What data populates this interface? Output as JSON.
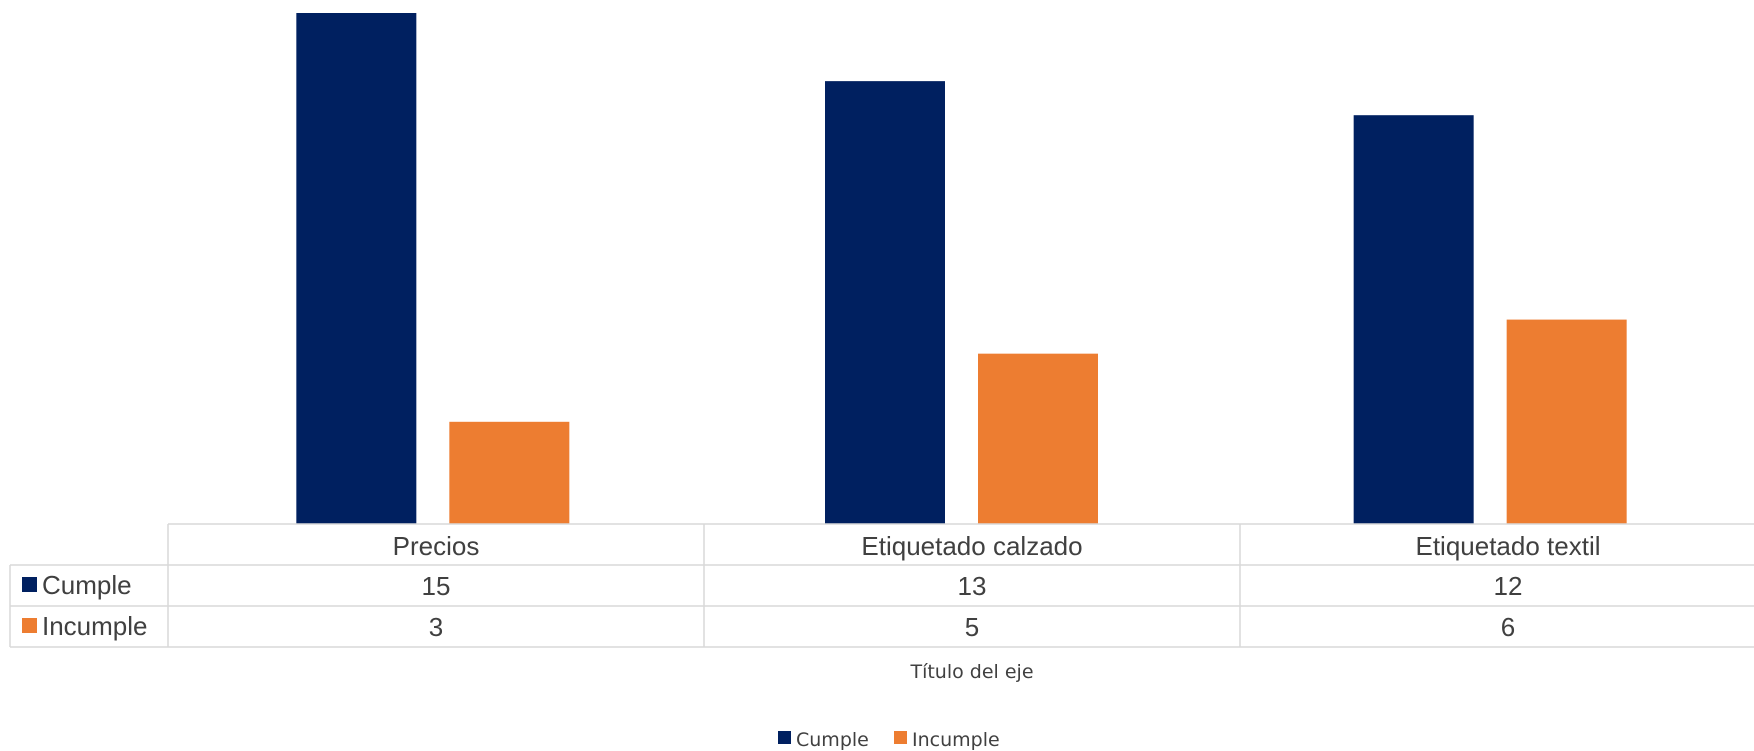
{
  "chart_data": {
    "type": "bar",
    "categories": [
      "Precios",
      "Etiquetado calzado",
      "Etiquetado textil"
    ],
    "series": [
      {
        "name": "Cumple",
        "values": [
          15,
          13,
          12
        ],
        "color": "#002060"
      },
      {
        "name": "Incumple",
        "values": [
          3,
          5,
          6
        ],
        "color": "#ED7D31"
      }
    ],
    "xlabel": "Título del eje",
    "ylim": [
      0,
      15
    ],
    "grid": false,
    "legend_position": "bottom",
    "data_table": true
  }
}
